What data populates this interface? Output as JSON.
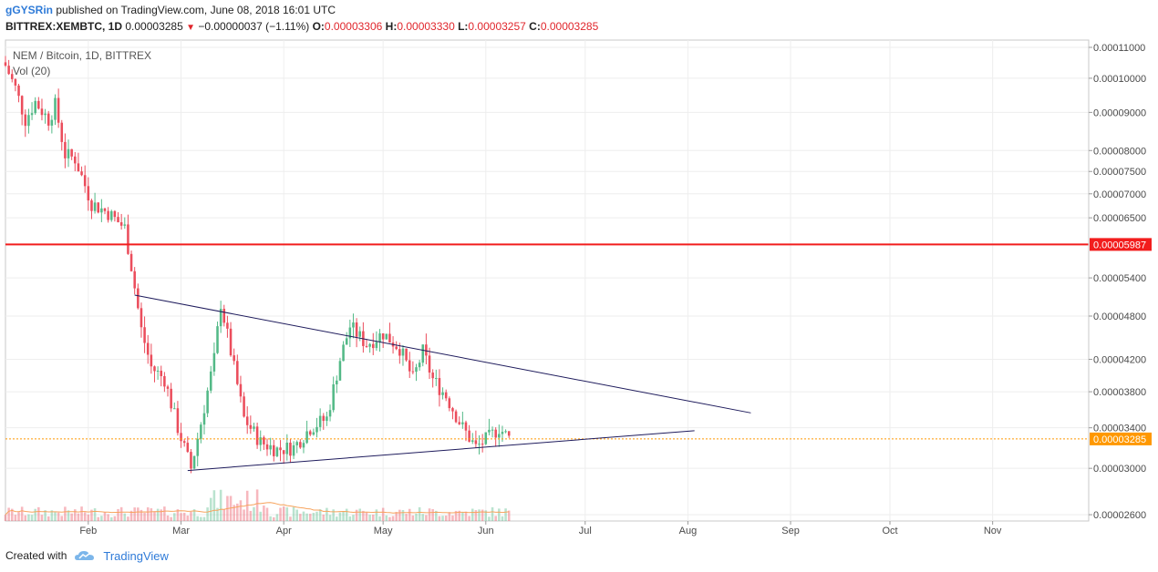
{
  "header": {
    "author": "gGYSRin",
    "published": "published on TradingView.com, June 08, 2018 16:01 UTC",
    "symbol": "BITTREX:XEMBTC, 1D",
    "last": "0.00003285",
    "change_arrow": "▼",
    "change": "−0.00000037 (−1.11%)",
    "o_label": "O:",
    "o_value": "0.00003306",
    "h_label": "H:",
    "h_value": "0.00003330",
    "l_label": "L:",
    "l_value": "0.00003257",
    "c_label": "C:",
    "c_value": "0.00003285"
  },
  "legend": {
    "title": "NEM / Bitcoin, 1D, BITTREX",
    "volume": "Vol (20)"
  },
  "footer": {
    "created_with": "Created with",
    "brand": "TradingView"
  },
  "colors": {
    "up": "#53b987",
    "down": "#eb4d5c",
    "resistance": "#f21d1d",
    "trendline": "#1e1b5c",
    "last_price": "#ff9800"
  },
  "chart_data": {
    "type": "candlestick",
    "title": "NEM / Bitcoin, 1D, BITTREX",
    "y_scale": "log",
    "ylim": [
      2.55e-05,
      0.0001125
    ],
    "y_ticks": [
      "0.00011000",
      "0.00010000",
      "0.00009000",
      "0.00008000",
      "0.00007500",
      "0.00007000",
      "0.00006500",
      "0.00005400",
      "0.00004800",
      "0.00004200",
      "0.00003800",
      "0.00003400",
      "0.00003000",
      "0.00002600"
    ],
    "x_start": "2018-01-07",
    "x_end": "2018-11-30",
    "x_ticks": [
      {
        "label": "Feb",
        "date": "2018-02-01"
      },
      {
        "label": "Mar",
        "date": "2018-03-01"
      },
      {
        "label": "Apr",
        "date": "2018-04-01"
      },
      {
        "label": "May",
        "date": "2018-05-01"
      },
      {
        "label": "Jun",
        "date": "2018-06-01"
      },
      {
        "label": "Jul",
        "date": "2018-07-01"
      },
      {
        "label": "Aug",
        "date": "2018-08-01"
      },
      {
        "label": "Sep",
        "date": "2018-09-01"
      },
      {
        "label": "Oct",
        "date": "2018-10-01"
      },
      {
        "label": "Nov",
        "date": "2018-11-01"
      }
    ],
    "horizontal_line": {
      "value": 5.987e-05,
      "label": "0.00005987"
    },
    "last_price": {
      "value": 3.285e-05,
      "label": "0.00003285"
    },
    "trendlines": [
      {
        "from": {
          "date": "2018-02-15",
          "value": 5.12e-05
        },
        "to": {
          "date": "2018-08-20",
          "value": 3.56e-05
        }
      },
      {
        "from": {
          "date": "2018-03-03",
          "value": 2.98e-05
        },
        "to": {
          "date": "2018-08-03",
          "value": 3.37e-05
        }
      }
    ],
    "price_path": [
      {
        "date": "2018-01-07",
        "value": 0.000104
      },
      {
        "date": "2018-01-10",
        "value": 9.7e-05
      },
      {
        "date": "2018-01-13",
        "value": 8.8e-05
      },
      {
        "date": "2018-01-16",
        "value": 9.3e-05
      },
      {
        "date": "2018-01-20",
        "value": 8.8e-05
      },
      {
        "date": "2018-01-22",
        "value": 9.2e-05
      },
      {
        "date": "2018-01-25",
        "value": 7.9e-05
      },
      {
        "date": "2018-01-28",
        "value": 7.8e-05
      },
      {
        "date": "2018-02-02",
        "value": 6.8e-05
      },
      {
        "date": "2018-02-07",
        "value": 6.6e-05
      },
      {
        "date": "2018-02-12",
        "value": 6.3e-05
      },
      {
        "date": "2018-02-14",
        "value": 5.6e-05
      },
      {
        "date": "2018-02-17",
        "value": 4.6e-05
      },
      {
        "date": "2018-02-20",
        "value": 4.1e-05
      },
      {
        "date": "2018-02-24",
        "value": 3.95e-05
      },
      {
        "date": "2018-02-28",
        "value": 3.4e-05
      },
      {
        "date": "2018-03-04",
        "value": 3e-05
      },
      {
        "date": "2018-03-07",
        "value": 3.45e-05
      },
      {
        "date": "2018-03-11",
        "value": 4.2e-05
      },
      {
        "date": "2018-03-13",
        "value": 5e-05
      },
      {
        "date": "2018-03-16",
        "value": 4.3e-05
      },
      {
        "date": "2018-03-20",
        "value": 3.5e-05
      },
      {
        "date": "2018-03-25",
        "value": 3.25e-05
      },
      {
        "date": "2018-03-30",
        "value": 3.18e-05
      },
      {
        "date": "2018-04-04",
        "value": 3.2e-05
      },
      {
        "date": "2018-04-09",
        "value": 3.4e-05
      },
      {
        "date": "2018-04-14",
        "value": 3.5e-05
      },
      {
        "date": "2018-04-18",
        "value": 4.2e-05
      },
      {
        "date": "2018-04-21",
        "value": 4.65e-05
      },
      {
        "date": "2018-04-26",
        "value": 4.4e-05
      },
      {
        "date": "2018-05-01",
        "value": 4.55e-05
      },
      {
        "date": "2018-05-06",
        "value": 4.35e-05
      },
      {
        "date": "2018-05-10",
        "value": 3.95e-05
      },
      {
        "date": "2018-05-13",
        "value": 4.3e-05
      },
      {
        "date": "2018-05-16",
        "value": 3.95e-05
      },
      {
        "date": "2018-05-20",
        "value": 3.75e-05
      },
      {
        "date": "2018-05-25",
        "value": 3.4e-05
      },
      {
        "date": "2018-05-29",
        "value": 3.2e-05
      },
      {
        "date": "2018-06-02",
        "value": 3.3e-05
      },
      {
        "date": "2018-06-05",
        "value": 3.4e-05
      },
      {
        "date": "2018-06-08",
        "value": 3.29e-05
      }
    ]
  }
}
